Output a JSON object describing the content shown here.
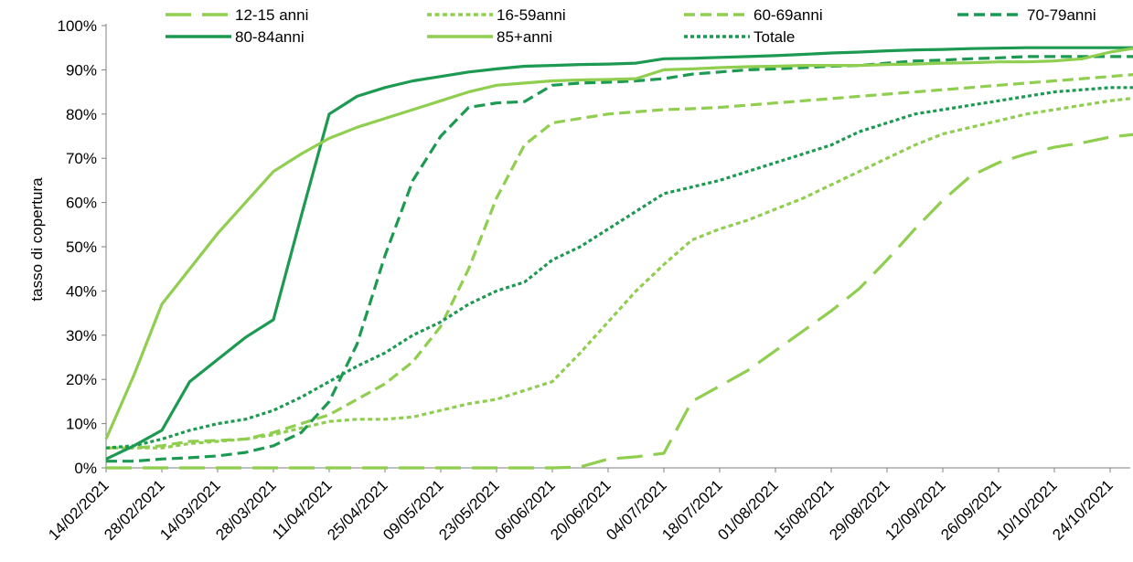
{
  "chart_data": {
    "type": "line",
    "title": "",
    "xlabel": "",
    "ylabel": "tasso di copertura",
    "ylim": [
      0,
      100
    ],
    "y_ticks": [
      "0%",
      "10%",
      "20%",
      "30%",
      "40%",
      "50%",
      "60%",
      "70%",
      "80%",
      "90%",
      "100%"
    ],
    "x_tick_labels": [
      "14/02/2021",
      "28/02/2021",
      "14/03/2021",
      "28/03/2021",
      "11/04/2021",
      "25/04/2021",
      "09/05/2021",
      "23/05/2021",
      "06/06/2021",
      "20/06/2021",
      "04/07/2021",
      "18/07/2021",
      "01/08/2021",
      "15/08/2021",
      "29/08/2021",
      "12/09/2021",
      "26/09/2021",
      "10/10/2021",
      "24/10/2021"
    ],
    "x_unit": "week",
    "grid": false,
    "legend_position": "top",
    "series": [
      {
        "name": "12-15 anni",
        "color": "#8fce4f",
        "dash": "long-dash",
        "points": [
          [
            0,
            0
          ],
          [
            2,
            0
          ],
          [
            4,
            0
          ],
          [
            6,
            0
          ],
          [
            8,
            0
          ],
          [
            10,
            0
          ],
          [
            12,
            0
          ],
          [
            14,
            0
          ],
          [
            16,
            0
          ],
          [
            17,
            0.2
          ],
          [
            18,
            2
          ],
          [
            19,
            2.5
          ],
          [
            20,
            3.3
          ],
          [
            21,
            15
          ],
          [
            22,
            18.5
          ],
          [
            23,
            22
          ],
          [
            24,
            26.5
          ],
          [
            25,
            31
          ],
          [
            26,
            35.5
          ],
          [
            27,
            40.5
          ],
          [
            28,
            47
          ],
          [
            29,
            54
          ],
          [
            30,
            60.5
          ],
          [
            31,
            66
          ],
          [
            32,
            69
          ],
          [
            33,
            71
          ],
          [
            34,
            72.5
          ],
          [
            35,
            73.5
          ],
          [
            36,
            74.8
          ],
          [
            37,
            75.5
          ]
        ]
      },
      {
        "name": "16-59anni",
        "color": "#8fce4f",
        "dash": "short-dash",
        "points": [
          [
            0,
            4.5
          ],
          [
            1,
            4.5
          ],
          [
            2,
            4.5
          ],
          [
            3,
            5.5
          ],
          [
            4,
            6
          ],
          [
            5,
            6.5
          ],
          [
            6,
            7.5
          ],
          [
            7,
            9
          ],
          [
            8,
            10.5
          ],
          [
            9,
            11
          ],
          [
            10,
            11
          ],
          [
            11,
            11.5
          ],
          [
            12,
            13
          ],
          [
            13,
            14.5
          ],
          [
            14,
            15.5
          ],
          [
            15,
            17.5
          ],
          [
            16,
            19.5
          ],
          [
            17,
            26
          ],
          [
            18,
            33
          ],
          [
            19,
            40
          ],
          [
            20,
            46
          ],
          [
            21,
            51.5
          ],
          [
            22,
            54
          ],
          [
            23,
            56
          ],
          [
            24,
            58.5
          ],
          [
            25,
            61
          ],
          [
            26,
            64
          ],
          [
            27,
            67
          ],
          [
            28,
            70
          ],
          [
            29,
            73
          ],
          [
            30,
            75.5
          ],
          [
            31,
            77
          ],
          [
            32,
            78.5
          ],
          [
            33,
            80
          ],
          [
            34,
            81
          ],
          [
            35,
            82
          ],
          [
            36,
            83
          ],
          [
            37,
            83.7
          ]
        ]
      },
      {
        "name": "60-69anni",
        "color": "#8fce4f",
        "dash": "dash",
        "points": [
          [
            0,
            4.5
          ],
          [
            1,
            4.5
          ],
          [
            2,
            5
          ],
          [
            3,
            6
          ],
          [
            4,
            6.2
          ],
          [
            5,
            6.5
          ],
          [
            6,
            8
          ],
          [
            7,
            10
          ],
          [
            8,
            12
          ],
          [
            9,
            15.5
          ],
          [
            10,
            19
          ],
          [
            11,
            24
          ],
          [
            12,
            32
          ],
          [
            13,
            45
          ],
          [
            14,
            61
          ],
          [
            15,
            73
          ],
          [
            16,
            78
          ],
          [
            17,
            79
          ],
          [
            18,
            80
          ],
          [
            19,
            80.5
          ],
          [
            20,
            81
          ],
          [
            21,
            81.2
          ],
          [
            22,
            81.5
          ],
          [
            23,
            82
          ],
          [
            24,
            82.5
          ],
          [
            25,
            83
          ],
          [
            26,
            83.5
          ],
          [
            27,
            84
          ],
          [
            28,
            84.5
          ],
          [
            29,
            85
          ],
          [
            30,
            85.5
          ],
          [
            31,
            86
          ],
          [
            32,
            86.5
          ],
          [
            33,
            87
          ],
          [
            34,
            87.5
          ],
          [
            35,
            88
          ],
          [
            36,
            88.5
          ],
          [
            37,
            89
          ]
        ]
      },
      {
        "name": "70-79anni",
        "color": "#1d9a52",
        "dash": "dash",
        "points": [
          [
            0,
            1.5
          ],
          [
            1,
            1.5
          ],
          [
            2,
            2
          ],
          [
            3,
            2.3
          ],
          [
            4,
            2.7
          ],
          [
            5,
            3.5
          ],
          [
            6,
            5
          ],
          [
            7,
            8
          ],
          [
            8,
            15
          ],
          [
            9,
            28
          ],
          [
            10,
            48
          ],
          [
            11,
            65
          ],
          [
            12,
            75
          ],
          [
            13,
            81.5
          ],
          [
            14,
            82.5
          ],
          [
            15,
            82.8
          ],
          [
            16,
            86.5
          ],
          [
            17,
            87
          ],
          [
            18,
            87.2
          ],
          [
            19,
            87.5
          ],
          [
            20,
            88
          ],
          [
            21,
            89
          ],
          [
            22,
            89.5
          ],
          [
            23,
            90
          ],
          [
            24,
            90.2
          ],
          [
            25,
            90.5
          ],
          [
            26,
            90.8
          ],
          [
            27,
            91
          ],
          [
            28,
            91.5
          ],
          [
            29,
            92
          ],
          [
            30,
            92.2
          ],
          [
            31,
            92.5
          ],
          [
            32,
            92.7
          ],
          [
            33,
            93
          ],
          [
            34,
            93
          ],
          [
            35,
            93
          ],
          [
            36,
            93
          ],
          [
            37,
            93
          ]
        ]
      },
      {
        "name": "80-84anni",
        "color": "#1d9a52",
        "dash": "solid",
        "points": [
          [
            0,
            2
          ],
          [
            1,
            5
          ],
          [
            2,
            8.5
          ],
          [
            3,
            19.5
          ],
          [
            4,
            24.5
          ],
          [
            5,
            29.5
          ],
          [
            6,
            33.5
          ],
          [
            7,
            57
          ],
          [
            8,
            80
          ],
          [
            9,
            84
          ],
          [
            10,
            86
          ],
          [
            11,
            87.5
          ],
          [
            12,
            88.5
          ],
          [
            13,
            89.5
          ],
          [
            14,
            90.2
          ],
          [
            15,
            90.8
          ],
          [
            16,
            91
          ],
          [
            17,
            91.2
          ],
          [
            18,
            91.3
          ],
          [
            19,
            91.5
          ],
          [
            20,
            92.5
          ],
          [
            21,
            92.6
          ],
          [
            22,
            92.8
          ],
          [
            23,
            93
          ],
          [
            24,
            93.2
          ],
          [
            25,
            93.5
          ],
          [
            26,
            93.8
          ],
          [
            27,
            94
          ],
          [
            28,
            94.3
          ],
          [
            29,
            94.5
          ],
          [
            30,
            94.6
          ],
          [
            31,
            94.8
          ],
          [
            32,
            94.9
          ],
          [
            33,
            95
          ],
          [
            34,
            95
          ],
          [
            35,
            95
          ],
          [
            36,
            95
          ],
          [
            37,
            95
          ]
        ]
      },
      {
        "name": "85+anni",
        "color": "#8fce4f",
        "dash": "solid",
        "points": [
          [
            0,
            6.5
          ],
          [
            1,
            21
          ],
          [
            2,
            37
          ],
          [
            3,
            45
          ],
          [
            4,
            53
          ],
          [
            5,
            60
          ],
          [
            6,
            67
          ],
          [
            7,
            71
          ],
          [
            8,
            74.5
          ],
          [
            9,
            77
          ],
          [
            10,
            79
          ],
          [
            11,
            81
          ],
          [
            12,
            83
          ],
          [
            13,
            85
          ],
          [
            14,
            86.5
          ],
          [
            15,
            87
          ],
          [
            16,
            87.5
          ],
          [
            17,
            87.7
          ],
          [
            18,
            87.8
          ],
          [
            19,
            88
          ],
          [
            20,
            90
          ],
          [
            21,
            90.2
          ],
          [
            22,
            90.5
          ],
          [
            23,
            90.7
          ],
          [
            24,
            90.8
          ],
          [
            25,
            91
          ],
          [
            26,
            91
          ],
          [
            27,
            91
          ],
          [
            28,
            91.2
          ],
          [
            29,
            91.3
          ],
          [
            30,
            91.5
          ],
          [
            31,
            91.6
          ],
          [
            32,
            91.8
          ],
          [
            33,
            91.8
          ],
          [
            34,
            92
          ],
          [
            35,
            92.5
          ],
          [
            36,
            94
          ],
          [
            37,
            95
          ]
        ]
      },
      {
        "name": "Totale",
        "color": "#1d9a52",
        "dash": "dot",
        "points": [
          [
            0,
            4.5
          ],
          [
            1,
            5
          ],
          [
            2,
            6.5
          ],
          [
            3,
            8.5
          ],
          [
            4,
            10
          ],
          [
            5,
            11
          ],
          [
            6,
            13
          ],
          [
            7,
            16
          ],
          [
            8,
            19.5
          ],
          [
            9,
            23
          ],
          [
            10,
            26
          ],
          [
            11,
            30
          ],
          [
            12,
            33
          ],
          [
            13,
            37
          ],
          [
            14,
            40
          ],
          [
            15,
            42
          ],
          [
            16,
            47
          ],
          [
            17,
            50
          ],
          [
            18,
            54
          ],
          [
            19,
            58
          ],
          [
            20,
            62
          ],
          [
            21,
            63.5
          ],
          [
            22,
            65
          ],
          [
            23,
            67
          ],
          [
            24,
            69
          ],
          [
            25,
            71
          ],
          [
            26,
            73
          ],
          [
            27,
            76
          ],
          [
            28,
            78
          ],
          [
            29,
            80
          ],
          [
            30,
            81
          ],
          [
            31,
            82
          ],
          [
            32,
            83
          ],
          [
            33,
            84
          ],
          [
            34,
            85
          ],
          [
            35,
            85.5
          ],
          [
            36,
            86
          ],
          [
            37,
            86
          ]
        ]
      }
    ]
  }
}
